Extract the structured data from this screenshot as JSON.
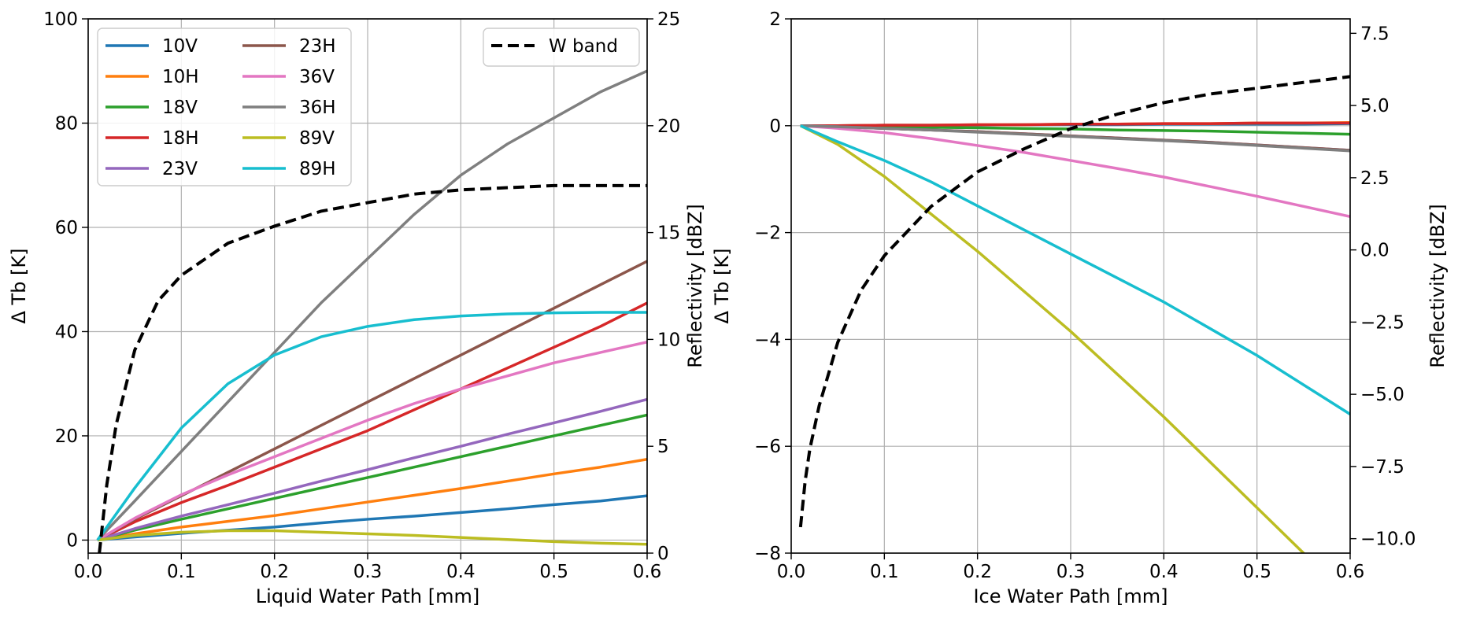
{
  "chart_data": [
    {
      "type": "line",
      "xlabel": "Liquid Water Path [mm]",
      "ylabel": "Δ Tb [K]",
      "ylabel_right": "Reflectivity [dBZ]",
      "xlim": [
        0,
        0.6
      ],
      "ylim": [
        -2.5,
        100
      ],
      "ylim_right": [
        0,
        25
      ],
      "xticks": [
        "0.0",
        "0.1",
        "0.2",
        "0.3",
        "0.4",
        "0.5",
        "0.6"
      ],
      "xtick_values": [
        0,
        0.1,
        0.2,
        0.3,
        0.4,
        0.5,
        0.6
      ],
      "yticks": [
        "0",
        "20",
        "40",
        "60",
        "80",
        "100"
      ],
      "ytick_values": [
        0,
        20,
        40,
        60,
        80,
        100
      ],
      "yticks_right": [
        "0",
        "5",
        "10",
        "15",
        "20",
        "25"
      ],
      "ytick_values_right": [
        0,
        5,
        10,
        15,
        20,
        25
      ],
      "grid": true,
      "legend_position": "top-left",
      "legend_right_position": "top-right",
      "x": [
        0.01,
        0.05,
        0.1,
        0.15,
        0.2,
        0.25,
        0.3,
        0.35,
        0.4,
        0.45,
        0.5,
        0.55,
        0.6
      ],
      "series": [
        {
          "name": "10V",
          "color": "#1f77b4",
          "values": [
            0,
            0.6,
            1.3,
            1.9,
            2.5,
            3.3,
            4.0,
            4.6,
            5.3,
            6.0,
            6.8,
            7.5,
            8.5
          ]
        },
        {
          "name": "10H",
          "color": "#ff7f0e",
          "values": [
            0,
            1.2,
            2.5,
            3.6,
            4.7,
            6.0,
            7.3,
            8.6,
            9.9,
            11.3,
            12.7,
            14.0,
            15.5
          ]
        },
        {
          "name": "18V",
          "color": "#2ca02c",
          "values": [
            0,
            1.9,
            4.0,
            6.0,
            8.0,
            10.0,
            12.0,
            14.0,
            16.0,
            18.0,
            20.0,
            22.0,
            24.0
          ]
        },
        {
          "name": "18H",
          "color": "#d62728",
          "values": [
            0,
            3.5,
            7.2,
            10.5,
            14.0,
            17.5,
            21.0,
            25.0,
            29.0,
            33.0,
            37.0,
            41.0,
            45.5
          ]
        },
        {
          "name": "23V",
          "color": "#9467bd",
          "values": [
            0,
            2.2,
            4.6,
            6.8,
            9.0,
            11.3,
            13.5,
            15.8,
            18.0,
            20.3,
            22.5,
            24.7,
            27.0
          ]
        },
        {
          "name": "23H",
          "color": "#8c564b",
          "values": [
            0,
            4.0,
            8.5,
            13.0,
            17.5,
            22.0,
            26.5,
            31.0,
            35.5,
            40.0,
            44.5,
            49.0,
            53.5
          ]
        },
        {
          "name": "36V",
          "color": "#e377c2",
          "values": [
            0,
            4.2,
            8.7,
            12.5,
            16.0,
            19.5,
            23.0,
            26.2,
            29.0,
            31.5,
            34.0,
            36.0,
            38.0
          ]
        },
        {
          "name": "36H",
          "color": "#7f7f7f",
          "values": [
            0,
            7.5,
            17.0,
            26.5,
            36.0,
            45.5,
            54.0,
            62.5,
            70.0,
            76.0,
            81.0,
            86.0,
            90.0
          ]
        },
        {
          "name": "89V",
          "color": "#bcbd22",
          "values": [
            0,
            0.9,
            1.5,
            1.8,
            1.8,
            1.5,
            1.2,
            0.9,
            0.5,
            0.1,
            -0.3,
            -0.6,
            -0.8
          ]
        },
        {
          "name": "89H",
          "color": "#17becf",
          "values": [
            0,
            10.0,
            21.5,
            30.0,
            35.5,
            39.0,
            41.0,
            42.3,
            43.0,
            43.4,
            43.6,
            43.7,
            43.7
          ]
        }
      ],
      "right_series": {
        "name": "W band",
        "color": "#000000",
        "x": [
          0.012,
          0.02,
          0.03,
          0.05,
          0.075,
          0.1,
          0.15,
          0.2,
          0.25,
          0.3,
          0.35,
          0.4,
          0.45,
          0.5,
          0.55,
          0.6
        ],
        "values": [
          0,
          3.2,
          6.0,
          9.5,
          11.8,
          13.0,
          14.5,
          15.3,
          16.0,
          16.4,
          16.8,
          17.0,
          17.1,
          17.2,
          17.2,
          17.2
        ]
      }
    },
    {
      "type": "line",
      "xlabel": "Ice Water Path [mm]",
      "ylabel": "Δ Tb [K]",
      "ylabel_right": "Reflectivity [dBZ]",
      "xlim": [
        0,
        0.6
      ],
      "ylim": [
        -8,
        2
      ],
      "ylim_right": [
        -10.5,
        8
      ],
      "xticks": [
        "0.0",
        "0.1",
        "0.2",
        "0.3",
        "0.4",
        "0.5",
        "0.6"
      ],
      "xtick_values": [
        0,
        0.1,
        0.2,
        0.3,
        0.4,
        0.5,
        0.6
      ],
      "yticks": [
        "−8",
        "−6",
        "−4",
        "−2",
        "0",
        "2"
      ],
      "ytick_values": [
        -8,
        -6,
        -4,
        -2,
        0,
        2
      ],
      "yticks_right": [
        "−10.0",
        "−7.5",
        "−5.0",
        "−2.5",
        "0.0",
        "2.5",
        "5.0",
        "7.5"
      ],
      "ytick_values_right": [
        -10,
        -7.5,
        -5,
        -2.5,
        0,
        2.5,
        5,
        7.5
      ],
      "grid": true,
      "x": [
        0.01,
        0.05,
        0.1,
        0.15,
        0.2,
        0.25,
        0.3,
        0.35,
        0.4,
        0.45,
        0.5,
        0.55,
        0.6
      ],
      "series": [
        {
          "color": "#1f77b4",
          "values": [
            0,
            0.0,
            0.01,
            0.01,
            0.01,
            0.02,
            0.02,
            0.02,
            0.03,
            0.03,
            0.03,
            0.03,
            0.04
          ]
        },
        {
          "color": "#ff7f0e",
          "values": [
            0,
            0.0,
            0.01,
            0.01,
            0.02,
            0.02,
            0.03,
            0.03,
            0.04,
            0.04,
            0.05,
            0.05,
            0.06
          ]
        },
        {
          "color": "#2ca02c",
          "values": [
            0,
            -0.01,
            -0.02,
            -0.03,
            -0.04,
            -0.05,
            -0.06,
            -0.08,
            -0.09,
            -0.1,
            -0.12,
            -0.14,
            -0.16
          ]
        },
        {
          "color": "#d62728",
          "values": [
            0,
            0.0,
            0.01,
            0.01,
            0.02,
            0.02,
            0.03,
            0.03,
            0.04,
            0.04,
            0.05,
            0.05,
            0.05
          ]
        },
        {
          "color": "#9467bd",
          "values": [
            0,
            -0.02,
            -0.05,
            -0.08,
            -0.11,
            -0.15,
            -0.19,
            -0.23,
            -0.27,
            -0.31,
            -0.36,
            -0.41,
            -0.46
          ]
        },
        {
          "color": "#8c564b",
          "values": [
            0,
            -0.02,
            -0.05,
            -0.08,
            -0.11,
            -0.15,
            -0.19,
            -0.23,
            -0.27,
            -0.31,
            -0.36,
            -0.41,
            -0.46
          ]
        },
        {
          "color": "#e377c2",
          "values": [
            0,
            -0.05,
            -0.13,
            -0.24,
            -0.37,
            -0.5,
            -0.65,
            -0.8,
            -0.96,
            -1.14,
            -1.32,
            -1.51,
            -1.7
          ]
        },
        {
          "color": "#7f7f7f",
          "values": [
            0,
            -0.02,
            -0.05,
            -0.08,
            -0.12,
            -0.16,
            -0.2,
            -0.24,
            -0.28,
            -0.32,
            -0.37,
            -0.42,
            -0.47
          ]
        },
        {
          "color": "#bcbd22",
          "values": [
            0,
            -0.35,
            -0.95,
            -1.65,
            -2.35,
            -3.1,
            -3.85,
            -4.65,
            -5.45,
            -6.3,
            -7.15,
            -8.0,
            -8.85
          ]
        },
        {
          "color": "#17becf",
          "values": [
            0,
            -0.3,
            -0.65,
            -1.05,
            -1.5,
            -1.95,
            -2.4,
            -2.85,
            -3.3,
            -3.8,
            -4.3,
            -4.85,
            -5.4
          ]
        }
      ],
      "right_series": {
        "color": "#000000",
        "x": [
          0.01,
          0.015,
          0.02,
          0.03,
          0.05,
          0.075,
          0.1,
          0.15,
          0.2,
          0.25,
          0.3,
          0.35,
          0.4,
          0.45,
          0.5,
          0.55,
          0.6
        ],
        "values": [
          -9.6,
          -8.0,
          -6.9,
          -5.4,
          -3.2,
          -1.4,
          -0.2,
          1.5,
          2.7,
          3.5,
          4.2,
          4.7,
          5.1,
          5.4,
          5.6,
          5.8,
          6.0
        ]
      }
    }
  ]
}
